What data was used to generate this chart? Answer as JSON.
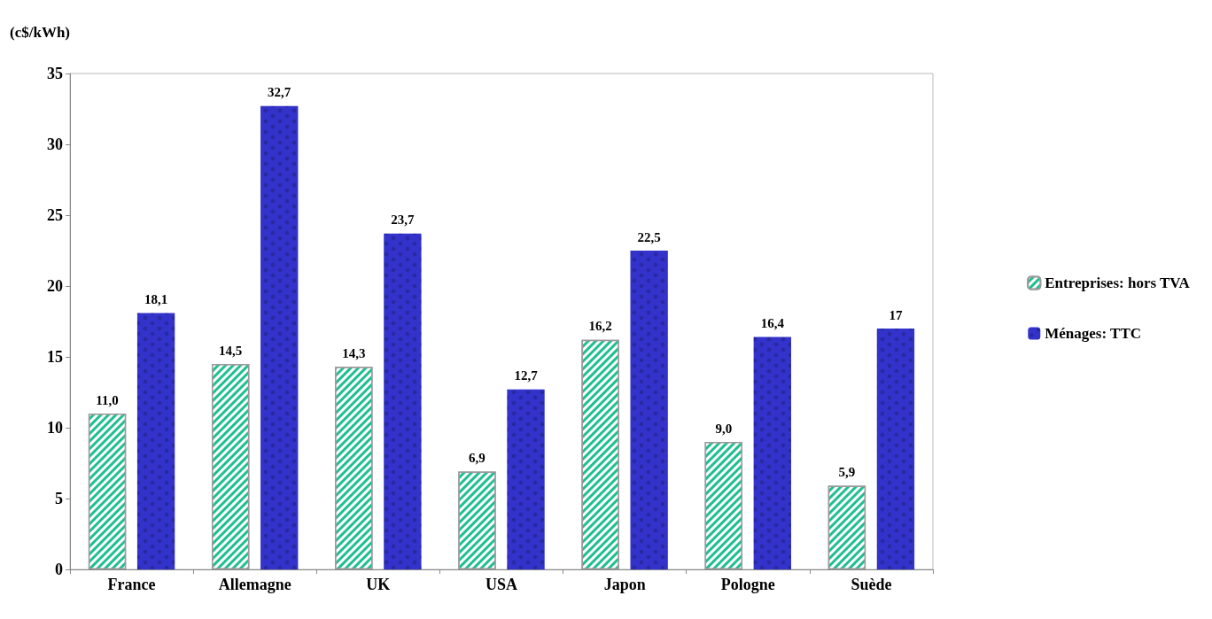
{
  "chart_data": {
    "type": "bar",
    "ylabel": "(c$/kWh)",
    "categories": [
      "France",
      "Allemagne",
      "UK",
      "USA",
      "Japon",
      "Pologne",
      "Suède"
    ],
    "series": [
      {
        "name": "Entreprises: hors TVA",
        "color": "#1fbf8f",
        "values": [
          11.0,
          14.5,
          14.3,
          6.9,
          16.2,
          9.0,
          5.9
        ],
        "value_labels": [
          "11,0",
          "14,5",
          "14,3",
          "6,9",
          "16,2",
          "9,0",
          "5,9"
        ]
      },
      {
        "name": "Ménages: TTC",
        "color": "#3333cc",
        "values": [
          18.1,
          32.7,
          23.7,
          12.7,
          22.5,
          16.4,
          17
        ],
        "value_labels": [
          "18,1",
          "32,7",
          "23,7",
          "12,7",
          "22,5",
          "16,4",
          "17"
        ]
      }
    ],
    "ylim": [
      0,
      35
    ],
    "yticks": [
      0,
      5,
      10,
      15,
      20,
      25,
      30,
      35
    ],
    "grid": false,
    "legend": "right"
  }
}
